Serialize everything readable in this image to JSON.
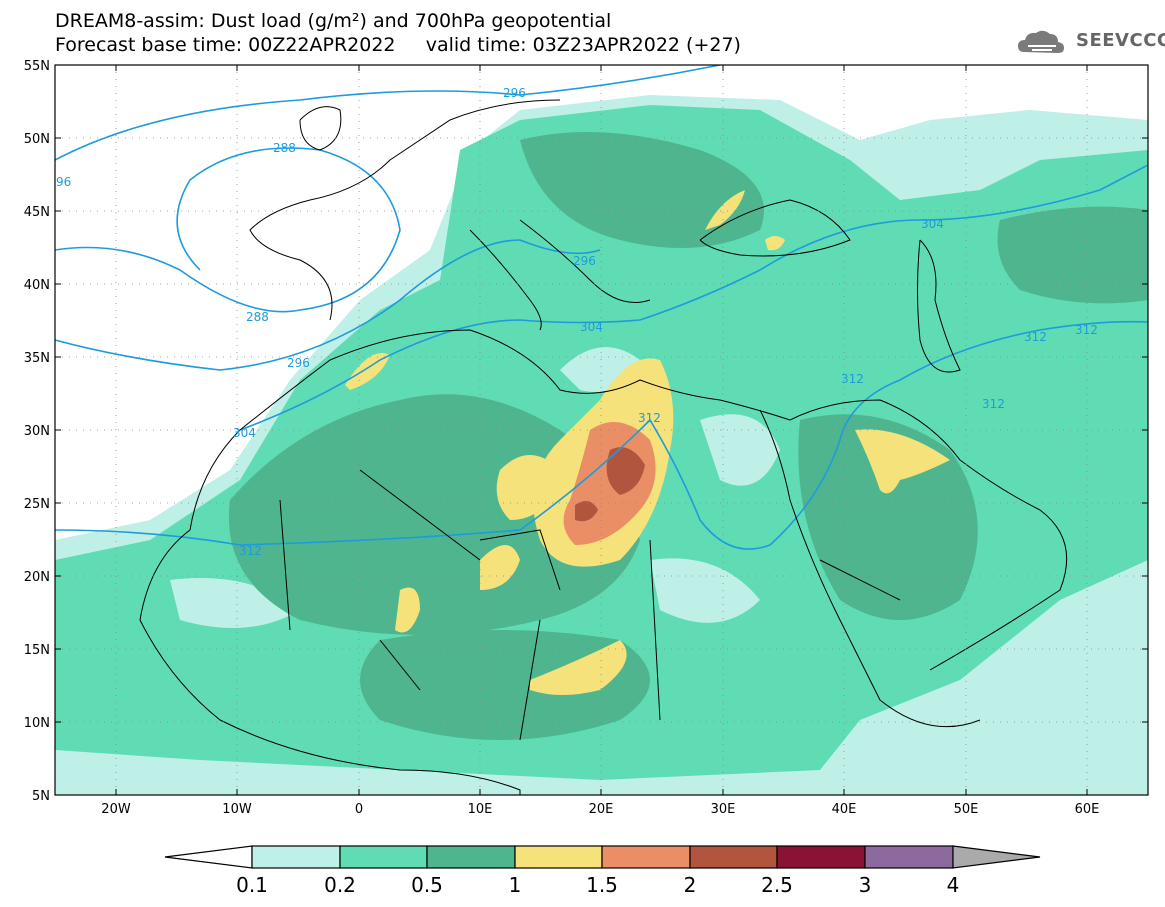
{
  "title_line1": "DREAM8-assim: Dust load (g/m²) and 700hPa geopotential",
  "title_line2": "Forecast base time: 00Z22APR2022     valid time: 03Z23APR2022 (+27)",
  "logo": {
    "icon": "cloud-logo-icon",
    "text": "SEEVCCC"
  },
  "map": {
    "lon_range": [
      -25,
      65
    ],
    "lat_range": [
      5,
      55
    ],
    "lat_ticks": [
      "55N",
      "50N",
      "45N",
      "40N",
      "35N",
      "30N",
      "25N",
      "20N",
      "15N",
      "10N",
      "5N"
    ],
    "lon_ticks": [
      "20W",
      "10W",
      "0",
      "10E",
      "20E",
      "30E",
      "40E",
      "50E",
      "60E"
    ],
    "grid": "dotted"
  },
  "colors": {
    "c1": "#bff0e8",
    "c2": "#5fdcb4",
    "c3": "#4fb58f",
    "c4": "#f5e27a",
    "c5": "#ea8e66",
    "c6": "#b2553f",
    "c7": "#8a1234",
    "c8": "#8c6aa0",
    "contour": "#1e9bdc"
  },
  "contours": [
    {
      "label": "296"
    },
    {
      "label": "288"
    },
    {
      "label": "96"
    },
    {
      "label": "288"
    },
    {
      "label": "296"
    },
    {
      "label": "304"
    },
    {
      "label": "304"
    },
    {
      "label": "296"
    },
    {
      "label": "304"
    },
    {
      "label": "312"
    },
    {
      "label": "312"
    },
    {
      "label": "312"
    },
    {
      "label": "312"
    },
    {
      "label": "312"
    },
    {
      "label": "312"
    }
  ],
  "colorbar": {
    "labels": [
      "0.1",
      "0.2",
      "0.5",
      "1",
      "1.5",
      "2",
      "2.5",
      "3",
      "4"
    ],
    "colors": [
      "#bff0e8",
      "#5fdcb4",
      "#4fb58f",
      "#f5e27a",
      "#ea8e66",
      "#b2553f",
      "#8a1234",
      "#8c6aa0"
    ]
  }
}
